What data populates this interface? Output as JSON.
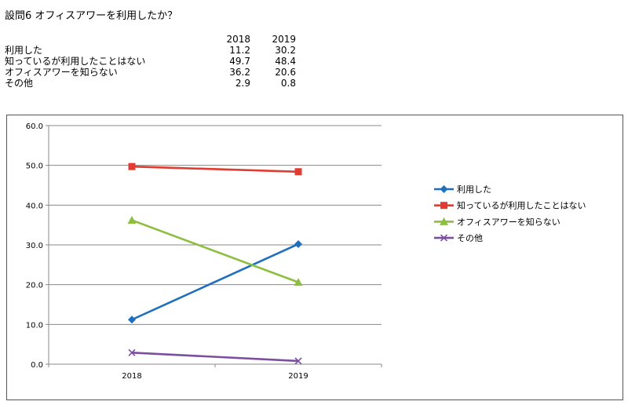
{
  "question": "設問6 オフィスアワーを利用したか？",
  "table": {
    "years": [
      "2018",
      "2019"
    ],
    "rows": [
      {
        "label": "利用した",
        "values": [
          "11.2",
          "30.2"
        ]
      },
      {
        "label": "知っているが利用したことはない",
        "values": [
          "49.7",
          "48.4"
        ]
      },
      {
        "label": "オフィスアワーを知らない",
        "values": [
          "36.2",
          "20.6"
        ]
      },
      {
        "label": "その他",
        "values": [
          "2.9",
          "0.8"
        ]
      }
    ]
  },
  "chart_data": {
    "type": "line",
    "categories": [
      "2018",
      "2019"
    ],
    "ylim": [
      0,
      60
    ],
    "yticks": [
      "0.0",
      "10.0",
      "20.0",
      "30.0",
      "40.0",
      "50.0",
      "60.0"
    ],
    "grid": true,
    "legend_position": "right",
    "series": [
      {
        "name": "利用した",
        "values": [
          11.2,
          30.2
        ],
        "color": "#1f6fbf",
        "marker": "diamond"
      },
      {
        "name": "知っているが利用したことはない",
        "values": [
          49.7,
          48.4
        ],
        "color": "#e03c31",
        "marker": "square"
      },
      {
        "name": "オフィスアワーを知らない",
        "values": [
          36.2,
          20.6
        ],
        "color": "#8cbf3f",
        "marker": "triangle"
      },
      {
        "name": "その他",
        "values": [
          2.9,
          0.8
        ],
        "color": "#7b4fa0",
        "marker": "x"
      }
    ]
  }
}
